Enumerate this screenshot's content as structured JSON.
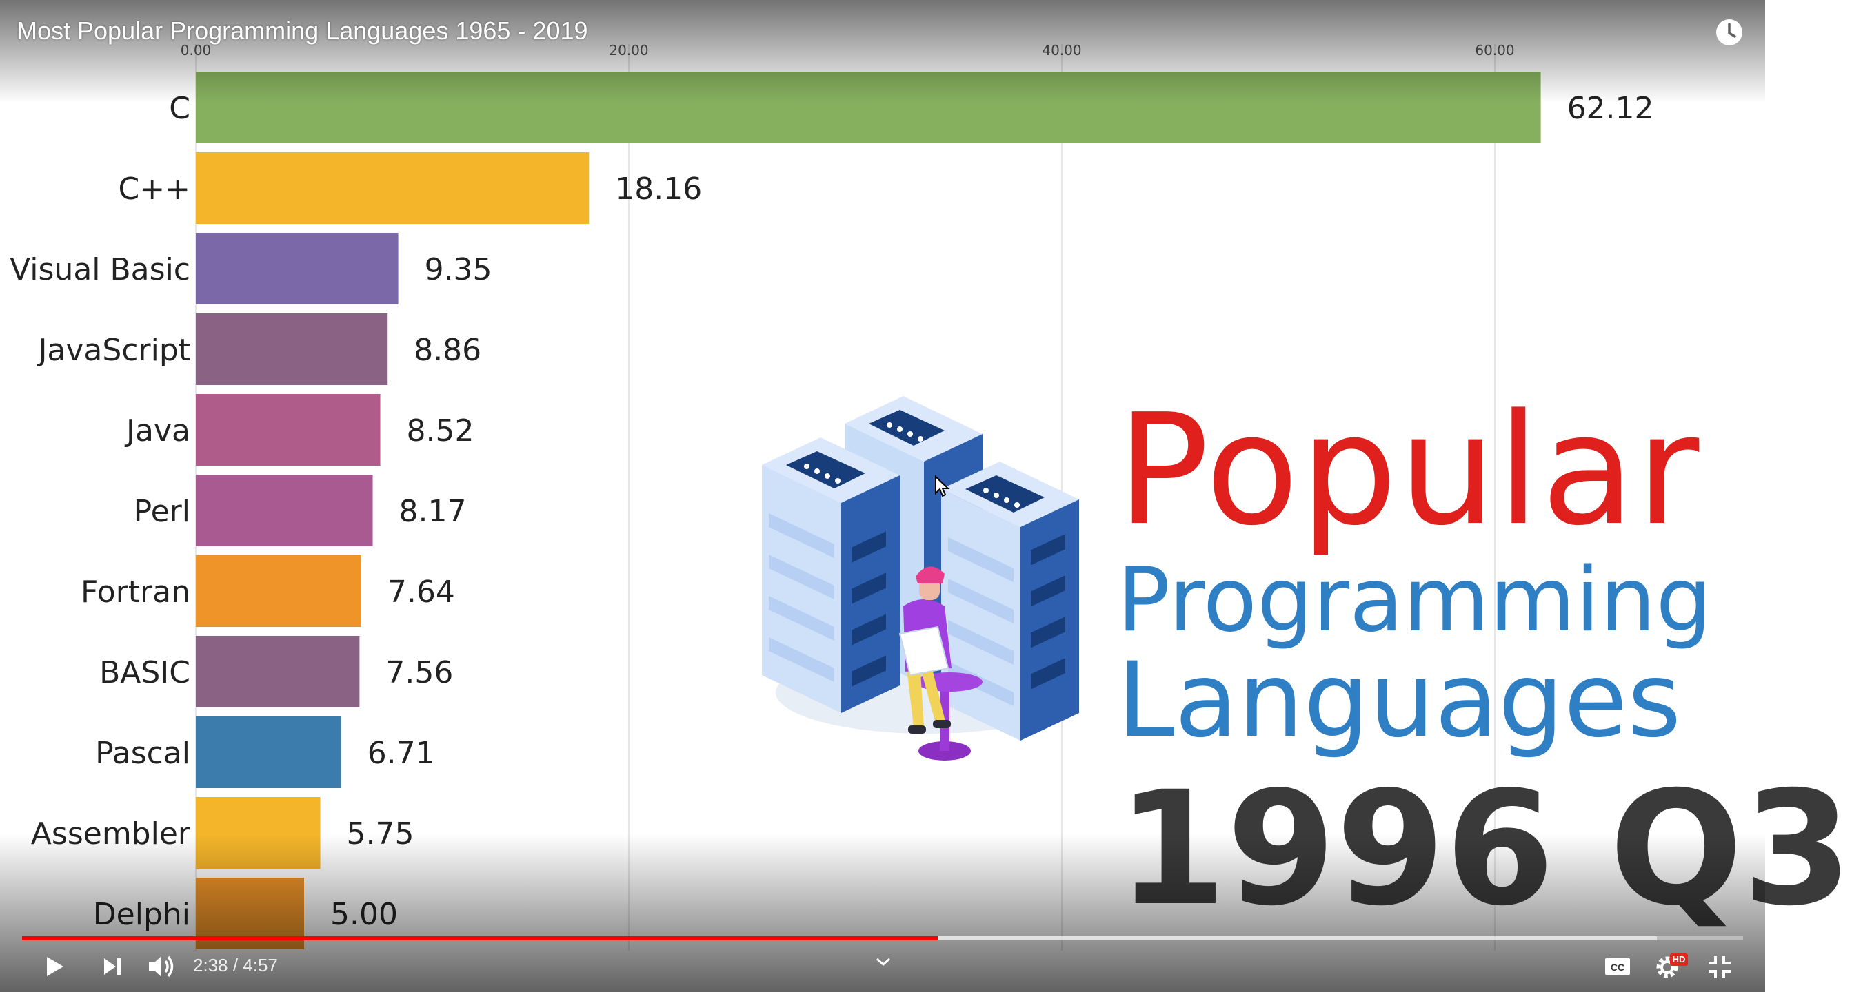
{
  "player": {
    "title": "Most Popular Programming Languages 1965 - 2019",
    "watch_later_icon": "clock-icon",
    "current_time": "2:38",
    "time_separator": " / ",
    "duration": "4:57",
    "progress_fraction": 0.532,
    "buffer_fraction": 0.95,
    "icons": {
      "play": "play-icon",
      "next": "next-icon",
      "volume": "volume-icon",
      "chapter": "chevron-down-icon",
      "captions": "cc-icon",
      "settings": "gear-icon",
      "hd_badge": "HD",
      "fullscreen": "exit-fullscreen-icon"
    },
    "accent_color": "#ff0000"
  },
  "headline": {
    "line1": "Popular",
    "line2": "Programming",
    "line3": "Languages",
    "period": "1996 Q3",
    "line1_color": "#e0201c",
    "line2_color": "#2f7fc4"
  },
  "chart_data": {
    "type": "bar",
    "orientation": "horizontal",
    "categories": [
      "C",
      "C++",
      "Visual Basic",
      "JavaScript",
      "Java",
      "Perl",
      "Fortran",
      "BASIC",
      "Pascal",
      "Assembler",
      "Delphi"
    ],
    "values": [
      62.12,
      18.16,
      9.35,
      8.86,
      8.52,
      8.17,
      7.64,
      7.56,
      6.71,
      5.75,
      5.0
    ],
    "value_labels": [
      "62.12",
      "18.16",
      "9.35",
      "8.86",
      "8.52",
      "8.17",
      "7.64",
      "7.56",
      "6.71",
      "5.75",
      "5.00"
    ],
    "colors": [
      "#86b05e",
      "#f5b52b",
      "#7a68a8",
      "#8a6283",
      "#b05c8b",
      "#a85a91",
      "#ee9429",
      "#8a6283",
      "#3b7cad",
      "#f5b52b",
      "#ee9429"
    ],
    "x_ticks": [
      "0.00",
      "20.00",
      "40.00",
      "60.00"
    ],
    "x_tick_values": [
      0,
      20,
      40,
      60
    ],
    "xlim": [
      0,
      64
    ],
    "grid": true,
    "axis_position": "top"
  }
}
